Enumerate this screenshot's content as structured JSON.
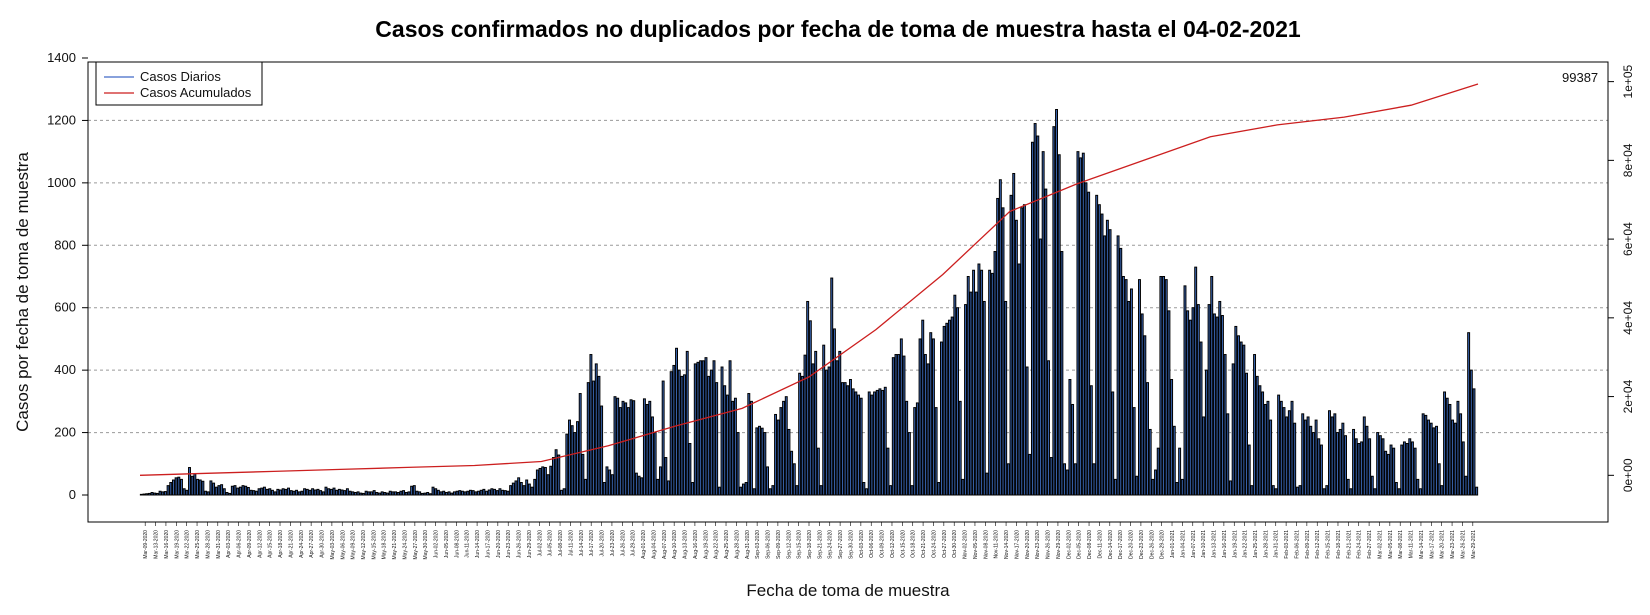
{
  "chart_data": {
    "type": "bar",
    "title": "Casos confirmados no duplicados por fecha de toma de muestra hasta el 04-02-2021",
    "xlabel": "Fecha de toma de muestra",
    "ylabel": "Casos por fecha de toma de muestra",
    "ylim": [
      0,
      1400
    ],
    "y_ticks": [
      0,
      200,
      400,
      600,
      800,
      1000,
      1200,
      1400
    ],
    "y2lim": [
      -5000,
      106000
    ],
    "y2_ticks": [
      "0e+00",
      "2e+04",
      "4e+04",
      "6e+04",
      "8e+04",
      "1e+05"
    ],
    "grid": "horizontal dashed",
    "legend_position": "top-left",
    "final_cumulative_label": "99387",
    "colors": {
      "daily": "#3a67b5",
      "daily_legend": "#4169c8",
      "cumulative": "#cc1f1f"
    },
    "series": [
      {
        "name": "Casos Diarios",
        "kind": "bar",
        "values": [
          2,
          3,
          4,
          5,
          8,
          6,
          5,
          12,
          10,
          11,
          30,
          40,
          48,
          55,
          57,
          50,
          20,
          15,
          88,
          60,
          68,
          50,
          48,
          44,
          12,
          10,
          45,
          38,
          25,
          30,
          33,
          20,
          8,
          5,
          28,
          30,
          22,
          25,
          30,
          28,
          24,
          15,
          14,
          12,
          20,
          22,
          25,
          18,
          20,
          15,
          10,
          18,
          16,
          20,
          18,
          22,
          14,
          12,
          15,
          10,
          12,
          20,
          18,
          15,
          20,
          16,
          18,
          14,
          10,
          25,
          20,
          18,
          22,
          15,
          18,
          16,
          14,
          20,
          12,
          10,
          8,
          10,
          6,
          5,
          12,
          10,
          10,
          14,
          8,
          6,
          10,
          8,
          6,
          12,
          10,
          10,
          8,
          12,
          14,
          8,
          10,
          28,
          30,
          12,
          10,
          5,
          6,
          8,
          4,
          25,
          20,
          15,
          10,
          12,
          8,
          10,
          6,
          10,
          12,
          14,
          12,
          10,
          12,
          15,
          14,
          10,
          12,
          15,
          18,
          12,
          16,
          20,
          18,
          14,
          20,
          15,
          14,
          12,
          30,
          38,
          45,
          55,
          40,
          30,
          48,
          35,
          25,
          50,
          80,
          85,
          90,
          88,
          65,
          92,
          120,
          145,
          128,
          15,
          20,
          195,
          240,
          222,
          200,
          235,
          325,
          130,
          50,
          360,
          450,
          365,
          420,
          380,
          285,
          40,
          90,
          80,
          65,
          315,
          310,
          280,
          300,
          295,
          280,
          305,
          302,
          70,
          60,
          55,
          308,
          290,
          300,
          250,
          200,
          50,
          90,
          365,
          120,
          45,
          395,
          415,
          470,
          400,
          380,
          385,
          460,
          165,
          40,
          420,
          425,
          430,
          430,
          440,
          380,
          400,
          430,
          360,
          25,
          410,
          350,
          320,
          430,
          300,
          310,
          200,
          25,
          35,
          40,
          325,
          300,
          20,
          215,
          220,
          214,
          200,
          90,
          20,
          30,
          258,
          240,
          280,
          300,
          315,
          210,
          140,
          100,
          30,
          390,
          380,
          448,
          620,
          558,
          420,
          460,
          150,
          30,
          480,
          400,
          410,
          695,
          532,
          430,
          460,
          360,
          360,
          350,
          370,
          340,
          330,
          320,
          310,
          40,
          20,
          330,
          320,
          330,
          335,
          340,
          335,
          345,
          150,
          30,
          440,
          450,
          450,
          500,
          445,
          300,
          200,
          30,
          280,
          295,
          500,
          560,
          450,
          420,
          520,
          500,
          280,
          40,
          490,
          540,
          550,
          560,
          570,
          640,
          600,
          300,
          50,
          610,
          700,
          650,
          720,
          650,
          740,
          720,
          620,
          70,
          720,
          710,
          780,
          950,
          1010,
          920,
          620,
          100,
          960,
          1030,
          880,
          740,
          920,
          930,
          410,
          130,
          1130,
          1190,
          1150,
          820,
          1100,
          980,
          430,
          120,
          1180,
          1235,
          1090,
          780,
          100,
          80,
          370,
          290,
          100,
          1100,
          1080,
          1095,
          1000,
          970,
          350,
          100,
          960,
          930,
          900,
          830,
          880,
          850,
          330,
          50,
          830,
          790,
          700,
          690,
          620,
          660,
          280,
          60,
          690,
          580,
          510,
          360,
          210,
          50,
          80,
          150,
          700,
          700,
          690,
          590,
          370,
          220,
          40,
          150,
          50,
          670,
          590,
          560,
          600,
          730,
          610,
          490,
          250,
          400,
          610,
          700,
          580,
          570,
          620,
          575,
          450,
          260,
          45,
          420,
          540,
          510,
          490,
          480,
          390,
          160,
          30,
          450,
          380,
          350,
          330,
          290,
          300,
          240,
          30,
          20,
          320,
          300,
          280,
          250,
          270,
          300,
          230,
          25,
          30,
          260,
          240,
          250,
          220,
          200,
          240,
          180,
          160,
          20,
          30,
          270,
          250,
          260,
          200,
          210,
          230,
          190,
          50,
          20,
          210,
          180,
          165,
          170,
          250,
          220,
          180,
          60,
          20,
          200,
          190,
          180,
          140,
          130,
          160,
          150,
          40,
          20,
          160,
          170,
          165,
          180,
          170,
          150,
          50,
          20,
          260,
          255,
          240,
          230,
          215,
          220,
          100,
          30,
          330,
          310,
          290,
          240,
          230,
          300,
          260,
          170,
          60,
          520,
          400,
          340,
          25
        ]
      },
      {
        "name": "Casos Acumulados",
        "kind": "line",
        "axis": "right",
        "x_fraction": [
          0,
          0.05,
          0.1,
          0.15,
          0.2,
          0.25,
          0.3,
          0.35,
          0.4,
          0.45,
          0.5,
          0.55,
          0.6,
          0.65,
          0.7,
          0.75,
          0.8,
          0.85,
          0.9,
          0.95,
          1.0
        ],
        "values": [
          0,
          500,
          1000,
          1500,
          2000,
          2500,
          3500,
          7500,
          12500,
          17000,
          25000,
          37000,
          51000,
          67000,
          74000,
          80000,
          86000,
          89000,
          91000,
          94000,
          99387
        ]
      }
    ],
    "x_tick_labels": [
      "Mar-09-2020",
      "Mar-13-2020",
      "Mar-16-2020",
      "Mar-19-2020",
      "Mar-22-2020",
      "Mar-25-2020",
      "Mar-28-2020",
      "Mar-31-2020",
      "Apr-03-2020",
      "Apr-06-2020",
      "Apr-09-2020",
      "Apr-12-2020",
      "Apr-15-2020",
      "Apr-18-2020",
      "Apr-21-2020",
      "Apr-24-2020",
      "Apr-27-2020",
      "Apr-30-2020",
      "May-03-2020",
      "May-06-2020",
      "May-09-2020",
      "May-12-2020",
      "May-15-2020",
      "May-18-2020",
      "May-21-2020",
      "May-24-2020",
      "May-27-2020",
      "May-30-2020",
      "Jun-02-2020",
      "Jun-05-2020",
      "Jun-08-2020",
      "Jun-11-2020",
      "Jun-14-2020",
      "Jun-17-2020",
      "Jun-20-2020",
      "Jun-23-2020",
      "Jun-26-2020",
      "Jun-29-2020",
      "Jul-02-2020",
      "Jul-05-2020",
      "Jul-08-2020",
      "Jul-11-2020",
      "Jul-14-2020",
      "Jul-17-2020",
      "Jul-20-2020",
      "Jul-23-2020",
      "Jul-26-2020",
      "Jul-29-2020",
      "Aug-01-2020",
      "Aug-04-2020",
      "Aug-07-2020",
      "Aug-10-2020",
      "Aug-13-2020",
      "Aug-16-2020",
      "Aug-19-2020",
      "Aug-22-2020",
      "Aug-25-2020",
      "Aug-28-2020",
      "Aug-31-2020",
      "Sep-03-2020",
      "Sep-06-2020",
      "Sep-09-2020",
      "Sep-12-2020",
      "Sep-15-2020",
      "Sep-18-2020",
      "Sep-21-2020",
      "Sep-24-2020",
      "Sep-27-2020",
      "Sep-30-2020",
      "Oct-03-2020",
      "Oct-06-2020",
      "Oct-09-2020",
      "Oct-12-2020",
      "Oct-15-2020",
      "Oct-18-2020",
      "Oct-21-2020",
      "Oct-24-2020",
      "Oct-27-2020",
      "Oct-30-2020",
      "Nov-02-2020",
      "Nov-05-2020",
      "Nov-08-2020",
      "Nov-11-2020",
      "Nov-14-2020",
      "Nov-17-2020",
      "Nov-20-2020",
      "Nov-23-2020",
      "Nov-26-2020",
      "Nov-29-2020",
      "Dec-02-2020",
      "Dec-05-2020",
      "Dec-08-2020",
      "Dec-11-2020",
      "Dec-14-2020",
      "Dec-17-2020",
      "Dec-20-2020",
      "Dec-23-2020",
      "Dec-26-2020",
      "Dec-29-2020",
      "Jan-01-2021",
      "Jan-04-2021",
      "Jan-07-2021",
      "Jan-10-2021",
      "Jan-13-2021",
      "Jan-16-2021",
      "Jan-19-2021",
      "Jan-22-2021",
      "Jan-25-2021",
      "Jan-28-2021",
      "Jan-31-2021",
      "Feb-03-2021",
      "Feb-06-2021",
      "Feb-09-2021",
      "Feb-12-2021",
      "Feb-15-2021",
      "Feb-18-2021",
      "Feb-21-2021",
      "Feb-24-2021",
      "Feb-27-2021",
      "Mar-02-2021",
      "Mar-05-2021",
      "Mar-08-2021",
      "Mar-11-2021",
      "Mar-14-2021",
      "Mar-17-2021",
      "Mar-20-2021",
      "Mar-23-2021",
      "Mar-26-2021",
      "Mar-29-2021"
    ]
  }
}
